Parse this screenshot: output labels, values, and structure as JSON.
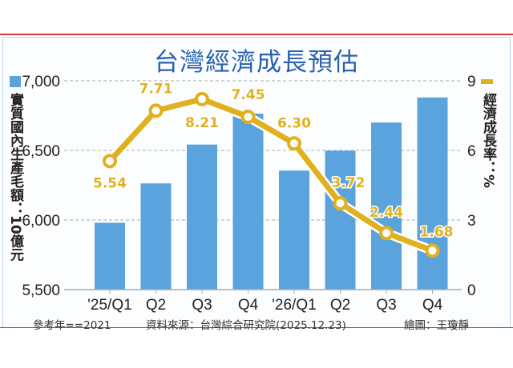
{
  "chart_data": {
    "type": "bar+line",
    "title": "台灣經濟成長預估",
    "categories": [
      "'25/Q1",
      "Q2",
      "Q3",
      "Q4",
      "'26/Q1",
      "Q2",
      "Q3",
      "Q4"
    ],
    "series": [
      {
        "name": "實質國內生產毛額：10億元",
        "type": "bar",
        "axis": "left",
        "color": "#5ba3dc",
        "values": [
          5980,
          6263,
          6542,
          6764,
          6355,
          6498,
          6700,
          6880
        ]
      },
      {
        "name": "經濟成長率：%",
        "type": "line",
        "axis": "right",
        "color": "#e0b11f",
        "values": [
          5.54,
          7.71,
          8.21,
          7.45,
          6.3,
          3.72,
          2.44,
          1.68
        ],
        "labels": [
          "5.54",
          "7.71",
          "8.21",
          "7.45",
          "6.30",
          "3.72",
          "2.44",
          "1.68"
        ]
      }
    ],
    "ylabel_left": "實質國內生產毛額：10億元",
    "ylabel_right": "經濟成長率：%",
    "ylim_left": [
      5500,
      7000
    ],
    "yticks_left": [
      "5,500",
      "6,000",
      "6,500",
      "7,000"
    ],
    "ylim_right": [
      0,
      9
    ],
    "yticks_right": [
      "0",
      "3",
      "6",
      "9"
    ],
    "grid": "dashed horizontal",
    "legend": "axis-side markers"
  },
  "footer": {
    "base_year": "參考年==2021",
    "source": "資料來源：台灣綜合研究院(2025.12.23)",
    "credit": "繪圖：王瓊靜"
  }
}
